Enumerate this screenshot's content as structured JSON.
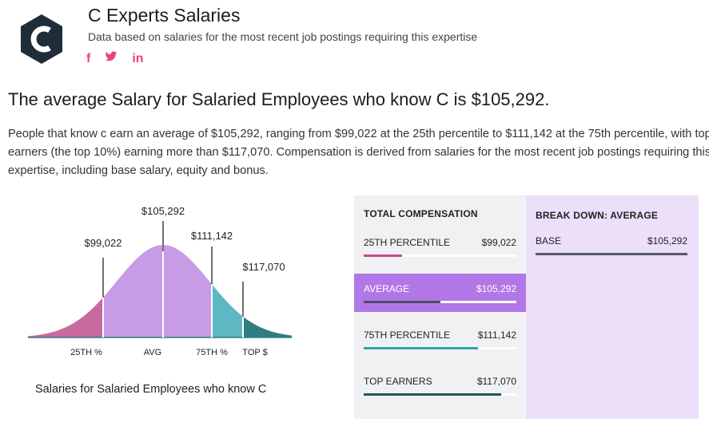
{
  "header": {
    "title": "C Experts Salaries",
    "subtitle": "Data based on salaries for the most recent job postings requiring this expertise",
    "logo_letter": "C",
    "social": [
      {
        "name": "facebook-icon",
        "glyph": "f"
      },
      {
        "name": "twitter-icon",
        "glyph": "🐦"
      },
      {
        "name": "linkedin-icon",
        "glyph": "in"
      }
    ],
    "accent_color": "#e8427c"
  },
  "headline": "The average Salary for Salaried Employees who know C is $105,292.",
  "description": "People that know c earn an average of $105,292, ranging from $99,022 at the 25th percentile to $111,142 at the 75th percentile, with top earners (the top 10%) earning more than $117,070. Compensation is derived from salaries for the most recent job postings requiring this expertise, including base salary, equity and bonus.",
  "chart": {
    "caption": "Salaries for Salaried Employees who know C",
    "markers": [
      {
        "label": "$99,022",
        "value": 99022
      },
      {
        "label": "$105,292",
        "value": 105292
      },
      {
        "label": "$111,142",
        "value": 111142
      },
      {
        "label": "$117,070",
        "value": 117070
      }
    ],
    "axis_labels": [
      "25TH %",
      "AVG",
      "75TH %",
      "TOP $"
    ],
    "segment_colors": [
      "#c86aa0",
      "#c79be6",
      "#c79be6",
      "#5db8c3",
      "#2f7d7f"
    ]
  },
  "compensation": {
    "heading": "TOTAL COMPENSATION",
    "rows": [
      {
        "label": "25TH PERCENTILE",
        "value": "$99,022",
        "fraction": 0.25,
        "color": "#c54b8c",
        "active": false
      },
      {
        "label": "AVERAGE",
        "value": "$105,292",
        "fraction": 0.5,
        "color": "#4a5166",
        "active": true
      },
      {
        "label": "75TH PERCENTILE",
        "value": "$111,142",
        "fraction": 0.75,
        "color": "#2ea3a8",
        "active": false
      },
      {
        "label": "TOP EARNERS",
        "value": "$117,070",
        "fraction": 0.9,
        "color": "#1c5960",
        "active": false
      }
    ]
  },
  "breakdown": {
    "heading": "BREAK DOWN: AVERAGE",
    "rows": [
      {
        "label": "BASE",
        "value": "$105,292"
      }
    ]
  }
}
